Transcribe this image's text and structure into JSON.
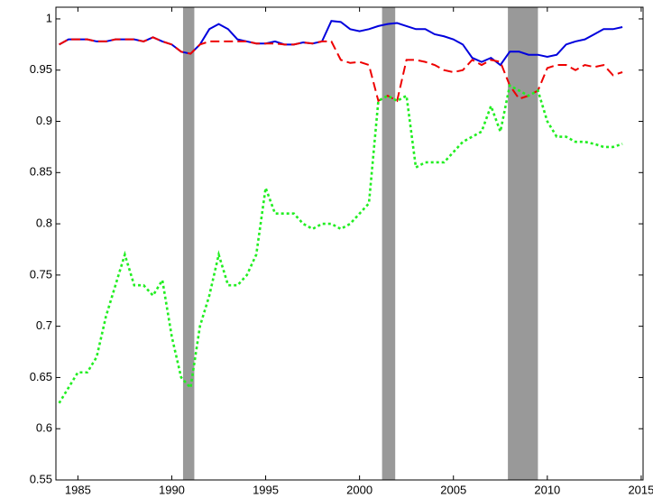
{
  "chart_data": {
    "type": "line",
    "x": [
      1984.0,
      1984.5,
      1985.0,
      1985.5,
      1986.0,
      1986.5,
      1987.0,
      1987.5,
      1988.0,
      1988.5,
      1989.0,
      1989.5,
      1990.0,
      1990.5,
      1991.0,
      1991.5,
      1992.0,
      1992.5,
      1993.0,
      1993.5,
      1994.0,
      1994.5,
      1995.0,
      1995.5,
      1996.0,
      1996.5,
      1997.0,
      1997.5,
      1998.0,
      1998.5,
      1999.0,
      1999.5,
      2000.0,
      2000.5,
      2001.0,
      2001.5,
      2002.0,
      2002.5,
      2003.0,
      2003.5,
      2004.0,
      2004.5,
      2005.0,
      2005.5,
      2006.0,
      2006.5,
      2007.0,
      2007.5,
      2008.0,
      2008.5,
      2009.0,
      2009.5,
      2010.0,
      2010.5,
      2011.0,
      2011.5,
      2012.0,
      2012.5,
      2013.0,
      2013.5,
      2014.0
    ],
    "series": [
      {
        "color": "#0000dd",
        "dash": "solid",
        "values": [
          0.975,
          0.98,
          0.98,
          0.98,
          0.978,
          0.978,
          0.98,
          0.98,
          0.98,
          0.978,
          0.982,
          0.978,
          0.975,
          0.968,
          0.966,
          0.975,
          0.99,
          0.995,
          0.99,
          0.98,
          0.978,
          0.976,
          0.976,
          0.978,
          0.975,
          0.975,
          0.977,
          0.976,
          0.978,
          0.998,
          0.997,
          0.99,
          0.988,
          0.99,
          0.993,
          0.995,
          0.996,
          0.993,
          0.99,
          0.99,
          0.985,
          0.983,
          0.98,
          0.975,
          0.962,
          0.958,
          0.962,
          0.955,
          0.968,
          0.968,
          0.965,
          0.965,
          0.963,
          0.965,
          0.975,
          0.978,
          0.98,
          0.985,
          0.99,
          0.99,
          0.992
        ]
      },
      {
        "color": "#ee0000",
        "dash": "dashed",
        "values": [
          0.975,
          0.98,
          0.98,
          0.98,
          0.978,
          0.978,
          0.98,
          0.98,
          0.98,
          0.978,
          0.982,
          0.978,
          0.975,
          0.968,
          0.966,
          0.975,
          0.978,
          0.978,
          0.978,
          0.978,
          0.978,
          0.976,
          0.976,
          0.976,
          0.975,
          0.975,
          0.977,
          0.976,
          0.978,
          0.978,
          0.96,
          0.957,
          0.958,
          0.955,
          0.92,
          0.925,
          0.92,
          0.96,
          0.96,
          0.958,
          0.955,
          0.95,
          0.948,
          0.95,
          0.96,
          0.955,
          0.96,
          0.958,
          0.935,
          0.922,
          0.925,
          0.93,
          0.952,
          0.955,
          0.955,
          0.95,
          0.955,
          0.953,
          0.955,
          0.945,
          0.948
        ]
      },
      {
        "color": "#22ee22",
        "dash": "dotted",
        "values": [
          0.625,
          0.64,
          0.655,
          0.655,
          0.67,
          0.71,
          0.74,
          0.77,
          0.74,
          0.74,
          0.73,
          0.745,
          0.69,
          0.65,
          0.64,
          0.7,
          0.73,
          0.77,
          0.74,
          0.74,
          0.75,
          0.77,
          0.835,
          0.81,
          0.81,
          0.81,
          0.8,
          0.795,
          0.8,
          0.8,
          0.795,
          0.8,
          0.81,
          0.82,
          0.92,
          0.925,
          0.92,
          0.925,
          0.855,
          0.86,
          0.86,
          0.86,
          0.87,
          0.88,
          0.885,
          0.89,
          0.915,
          0.89,
          0.935,
          0.93,
          0.925,
          0.93,
          0.9,
          0.885,
          0.885,
          0.88,
          0.88,
          0.878,
          0.875,
          0.875,
          0.878
        ]
      }
    ],
    "shaded_periods": [
      [
        1990.6,
        1991.2
      ],
      [
        2001.2,
        2001.9
      ],
      [
        2007.9,
        2009.5
      ]
    ],
    "shade_color": "#999999",
    "xlim": [
      1983.83,
      2015.1
    ],
    "xticks": [
      1985,
      1990,
      1995,
      2000,
      2005,
      2010,
      2015
    ],
    "ylim": [
      0.55,
      1.0114
    ],
    "yticks": [
      0.55,
      0.6,
      0.65,
      0.7,
      0.75,
      0.8,
      0.85,
      0.9,
      0.95,
      1
    ],
    "grid": false
  }
}
